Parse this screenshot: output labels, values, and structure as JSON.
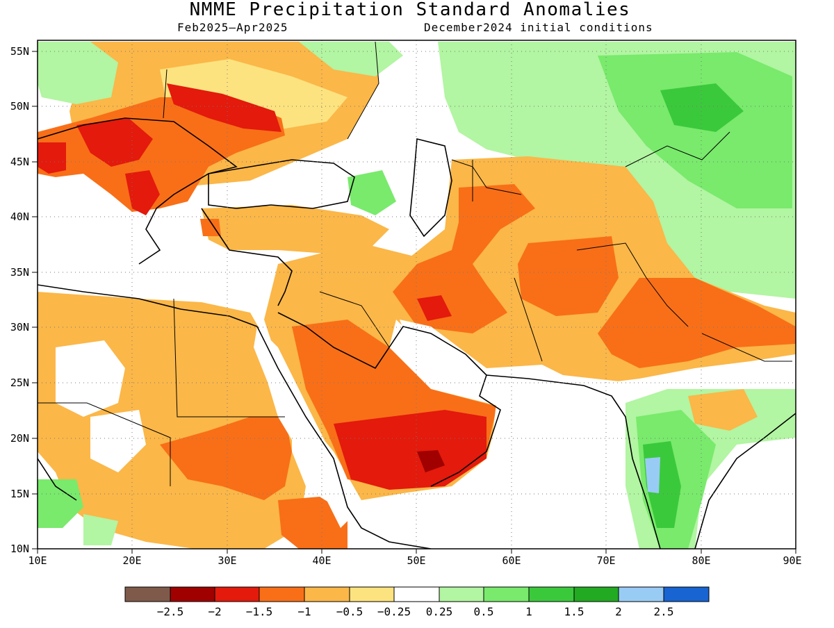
{
  "title": "NMME Precipitation Standard Anomalies",
  "subtitle_left": "Feb2025–Apr2025",
  "subtitle_right": "December2024 initial conditions",
  "map": {
    "lon_range": [
      10,
      90
    ],
    "lat_range": [
      10,
      56
    ],
    "lat_ticks": [
      "10N",
      "15N",
      "20N",
      "25N",
      "30N",
      "35N",
      "40N",
      "45N",
      "50N",
      "55N"
    ],
    "lon_ticks": [
      "10E",
      "20E",
      "30E",
      "40E",
      "50E",
      "60E",
      "70E",
      "80E",
      "90E"
    ],
    "grid": "dotted"
  },
  "colorbar": {
    "colors": [
      "#7f5a4a",
      "#a00000",
      "#e31a0c",
      "#f86f18",
      "#fbb748",
      "#fce37f",
      "#ffffff",
      "#b2f5a2",
      "#79ea6c",
      "#3bc93c",
      "#22aa22",
      "#99ccf5",
      "#1864d2"
    ],
    "labels": [
      "−2.5",
      "−2",
      "−1.5",
      "−1",
      "−0.5",
      "−0.25",
      "0.25",
      "0.5",
      "1",
      "1.5",
      "2",
      "2.5"
    ]
  },
  "regions": {
    "europe_balkans": -1.2,
    "eastern_europe": -0.6,
    "turkey_levant": -0.5,
    "arabian_peninsula": -1.2,
    "yemen_oman": -1.8,
    "iran": -1.2,
    "afghanistan_pakistan": -1.2,
    "northwest_india": -0.8,
    "northeast_africa": -0.6,
    "central_asia": 0.6,
    "south_india": 1.0,
    "caspian": 0.4
  }
}
